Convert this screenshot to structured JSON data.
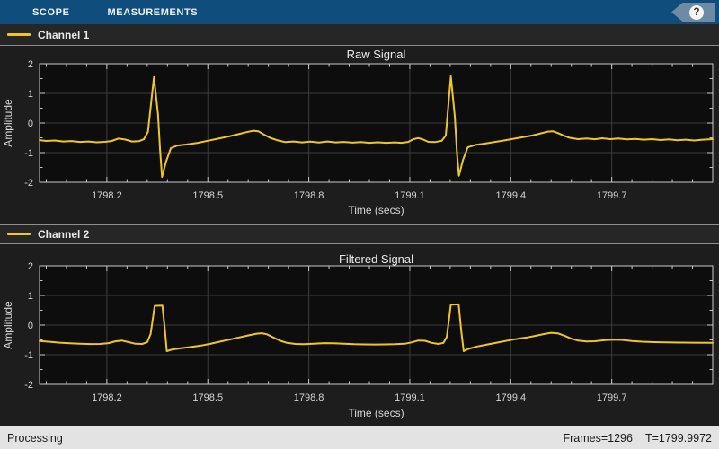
{
  "toolbar": {
    "tabs": [
      {
        "label": "SCOPE"
      },
      {
        "label": "MEASUREMENTS"
      }
    ],
    "help_glyph": "?"
  },
  "panels": [
    {
      "legend_label": "Channel 1",
      "title": "Raw Signal"
    },
    {
      "legend_label": "Channel 2",
      "title": "Filtered Signal"
    }
  ],
  "status_bar": {
    "left": "Processing",
    "frames": "Frames=1296",
    "time": "T=1799.9972"
  },
  "colors": {
    "toolbar_bg": "#0e4d7c",
    "tab_text": "#f2f2f2",
    "help_tag_bg": "#6e8ba3",
    "help_circle_bg": "#f5f5f5",
    "help_glyph_color": "#333333",
    "page_bg": "#1d1d1d",
    "legend_bg": "#262626",
    "separator": "#8f8f8f",
    "plot_bg": "#0d0d0d",
    "grid": "#3d3d3d",
    "axis": "#c9c9c9",
    "tick_text": "#d6d6d6",
    "title_text": "#eaeaea",
    "signal_yellow": "#eec62a",
    "status_bg": "#e3e3e3",
    "status_text": "#1b1b1b"
  },
  "chart_data": [
    {
      "type": "line",
      "title": "Raw Signal",
      "xlabel": "Time (secs)",
      "ylabel": "Amplitude",
      "xlim": [
        1798,
        1800
      ],
      "ylim": [
        -2,
        2
      ],
      "xticks": [
        1798.2,
        1798.5,
        1798.8,
        1799.1,
        1799.4,
        1799.7
      ],
      "yticks": [
        -2,
        -1,
        0,
        1,
        2
      ],
      "x_minor_step": 0.06,
      "y_minor_step": 0.5,
      "grid": true,
      "legend": [
        "Channel 1"
      ],
      "line_color": "#eec62a",
      "series": [
        {
          "name": "Channel 1",
          "points": [
            [
              1798.0,
              -0.58
            ],
            [
              1798.02,
              -0.605
            ],
            [
              1798.045,
              -0.59
            ],
            [
              1798.07,
              -0.625
            ],
            [
              1798.095,
              -0.61
            ],
            [
              1798.12,
              -0.64
            ],
            [
              1798.145,
              -0.625
            ],
            [
              1798.17,
              -0.65
            ],
            [
              1798.195,
              -0.635
            ],
            [
              1798.215,
              -0.605
            ],
            [
              1798.235,
              -0.525
            ],
            [
              1798.255,
              -0.56
            ],
            [
              1798.275,
              -0.625
            ],
            [
              1798.295,
              -0.615
            ],
            [
              1798.31,
              -0.55
            ],
            [
              1798.322,
              -0.3
            ],
            [
              1798.34,
              1.55
            ],
            [
              1798.352,
              0.3
            ],
            [
              1798.358,
              -0.9
            ],
            [
              1798.364,
              -1.82
            ],
            [
              1798.376,
              -1.3
            ],
            [
              1798.39,
              -0.85
            ],
            [
              1798.41,
              -0.76
            ],
            [
              1798.44,
              -0.72
            ],
            [
              1798.47,
              -0.67
            ],
            [
              1798.5,
              -0.6
            ],
            [
              1798.53,
              -0.53
            ],
            [
              1798.56,
              -0.46
            ],
            [
              1798.59,
              -0.38
            ],
            [
              1798.615,
              -0.31
            ],
            [
              1798.635,
              -0.26
            ],
            [
              1798.65,
              -0.28
            ],
            [
              1798.665,
              -0.38
            ],
            [
              1798.685,
              -0.5
            ],
            [
              1798.705,
              -0.58
            ],
            [
              1798.73,
              -0.645
            ],
            [
              1798.755,
              -0.625
            ],
            [
              1798.78,
              -0.655
            ],
            [
              1798.805,
              -0.63
            ],
            [
              1798.83,
              -0.66
            ],
            [
              1798.855,
              -0.625
            ],
            [
              1798.88,
              -0.655
            ],
            [
              1798.905,
              -0.64
            ],
            [
              1798.93,
              -0.665
            ],
            [
              1798.955,
              -0.645
            ],
            [
              1798.98,
              -0.67
            ],
            [
              1799.005,
              -0.65
            ],
            [
              1799.03,
              -0.67
            ],
            [
              1799.055,
              -0.655
            ],
            [
              1799.075,
              -0.67
            ],
            [
              1799.095,
              -0.64
            ],
            [
              1799.11,
              -0.55
            ],
            [
              1799.125,
              -0.51
            ],
            [
              1799.14,
              -0.56
            ],
            [
              1799.155,
              -0.635
            ],
            [
              1799.175,
              -0.645
            ],
            [
              1799.195,
              -0.6
            ],
            [
              1799.207,
              -0.42
            ],
            [
              1799.222,
              1.58
            ],
            [
              1799.234,
              0.2
            ],
            [
              1799.24,
              -1.0
            ],
            [
              1799.246,
              -1.78
            ],
            [
              1799.258,
              -1.25
            ],
            [
              1799.272,
              -0.82
            ],
            [
              1799.295,
              -0.74
            ],
            [
              1799.32,
              -0.7
            ],
            [
              1799.35,
              -0.645
            ],
            [
              1799.38,
              -0.59
            ],
            [
              1799.41,
              -0.53
            ],
            [
              1799.44,
              -0.47
            ],
            [
              1799.465,
              -0.42
            ],
            [
              1799.49,
              -0.35
            ],
            [
              1799.51,
              -0.29
            ],
            [
              1799.525,
              -0.28
            ],
            [
              1799.54,
              -0.34
            ],
            [
              1799.558,
              -0.43
            ],
            [
              1799.575,
              -0.5
            ],
            [
              1799.6,
              -0.545
            ],
            [
              1799.625,
              -0.52
            ],
            [
              1799.65,
              -0.55
            ],
            [
              1799.672,
              -0.515
            ],
            [
              1799.695,
              -0.545
            ],
            [
              1799.72,
              -0.52
            ],
            [
              1799.745,
              -0.555
            ],
            [
              1799.77,
              -0.535
            ],
            [
              1799.795,
              -0.565
            ],
            [
              1799.82,
              -0.545
            ],
            [
              1799.845,
              -0.575
            ],
            [
              1799.87,
              -0.555
            ],
            [
              1799.895,
              -0.585
            ],
            [
              1799.92,
              -0.565
            ],
            [
              1799.945,
              -0.59
            ],
            [
              1799.97,
              -0.565
            ],
            [
              1800.0,
              -0.545
            ]
          ]
        }
      ]
    },
    {
      "type": "line",
      "title": "Filtered Signal",
      "xlabel": "Time (secs)",
      "ylabel": "Amplitude",
      "xlim": [
        1798,
        1800
      ],
      "ylim": [
        -2,
        2
      ],
      "xticks": [
        1798.2,
        1798.5,
        1798.8,
        1799.1,
        1799.4,
        1799.7
      ],
      "yticks": [
        -2,
        -1,
        0,
        1,
        2
      ],
      "x_minor_step": 0.06,
      "y_minor_step": 0.5,
      "grid": true,
      "legend": [
        "Channel 2"
      ],
      "line_color": "#eec62a",
      "series": [
        {
          "name": "Channel 2",
          "points": [
            [
              1798.0,
              -0.54
            ],
            [
              1798.03,
              -0.565
            ],
            [
              1798.06,
              -0.595
            ],
            [
              1798.09,
              -0.615
            ],
            [
              1798.12,
              -0.63
            ],
            [
              1798.15,
              -0.64
            ],
            [
              1798.18,
              -0.635
            ],
            [
              1798.205,
              -0.61
            ],
            [
              1798.225,
              -0.55
            ],
            [
              1798.245,
              -0.525
            ],
            [
              1798.265,
              -0.575
            ],
            [
              1798.285,
              -0.63
            ],
            [
              1798.305,
              -0.635
            ],
            [
              1798.32,
              -0.58
            ],
            [
              1798.33,
              -0.3
            ],
            [
              1798.342,
              0.65
            ],
            [
              1798.365,
              0.66
            ],
            [
              1798.372,
              -0.1
            ],
            [
              1798.378,
              -0.88
            ],
            [
              1798.395,
              -0.82
            ],
            [
              1798.42,
              -0.78
            ],
            [
              1798.45,
              -0.74
            ],
            [
              1798.48,
              -0.69
            ],
            [
              1798.51,
              -0.625
            ],
            [
              1798.54,
              -0.55
            ],
            [
              1798.57,
              -0.475
            ],
            [
              1798.6,
              -0.4
            ],
            [
              1798.625,
              -0.335
            ],
            [
              1798.645,
              -0.29
            ],
            [
              1798.66,
              -0.275
            ],
            [
              1798.675,
              -0.31
            ],
            [
              1798.695,
              -0.42
            ],
            [
              1798.715,
              -0.53
            ],
            [
              1798.735,
              -0.6
            ],
            [
              1798.76,
              -0.635
            ],
            [
              1798.785,
              -0.645
            ],
            [
              1798.815,
              -0.63
            ],
            [
              1798.845,
              -0.61
            ],
            [
              1798.875,
              -0.615
            ],
            [
              1798.905,
              -0.63
            ],
            [
              1798.935,
              -0.645
            ],
            [
              1798.965,
              -0.65
            ],
            [
              1798.995,
              -0.655
            ],
            [
              1799.025,
              -0.65
            ],
            [
              1799.055,
              -0.645
            ],
            [
              1799.085,
              -0.63
            ],
            [
              1799.105,
              -0.585
            ],
            [
              1799.125,
              -0.52
            ],
            [
              1799.145,
              -0.53
            ],
            [
              1799.165,
              -0.6
            ],
            [
              1799.185,
              -0.635
            ],
            [
              1799.2,
              -0.6
            ],
            [
              1799.21,
              -0.4
            ],
            [
              1799.222,
              0.69
            ],
            [
              1799.245,
              0.7
            ],
            [
              1799.253,
              -0.2
            ],
            [
              1799.26,
              -0.88
            ],
            [
              1799.275,
              -0.8
            ],
            [
              1799.3,
              -0.72
            ],
            [
              1799.33,
              -0.655
            ],
            [
              1799.36,
              -0.59
            ],
            [
              1799.39,
              -0.525
            ],
            [
              1799.42,
              -0.465
            ],
            [
              1799.45,
              -0.415
            ],
            [
              1799.475,
              -0.36
            ],
            [
              1799.5,
              -0.3
            ],
            [
              1799.52,
              -0.26
            ],
            [
              1799.54,
              -0.28
            ],
            [
              1799.56,
              -0.36
            ],
            [
              1799.58,
              -0.46
            ],
            [
              1799.6,
              -0.525
            ],
            [
              1799.625,
              -0.555
            ],
            [
              1799.65,
              -0.545
            ],
            [
              1799.68,
              -0.51
            ],
            [
              1799.705,
              -0.49
            ],
            [
              1799.73,
              -0.5
            ],
            [
              1799.76,
              -0.535
            ],
            [
              1799.79,
              -0.56
            ],
            [
              1799.825,
              -0.575
            ],
            [
              1799.86,
              -0.585
            ],
            [
              1799.9,
              -0.59
            ],
            [
              1799.94,
              -0.595
            ],
            [
              1800.0,
              -0.6
            ]
          ]
        }
      ]
    }
  ]
}
